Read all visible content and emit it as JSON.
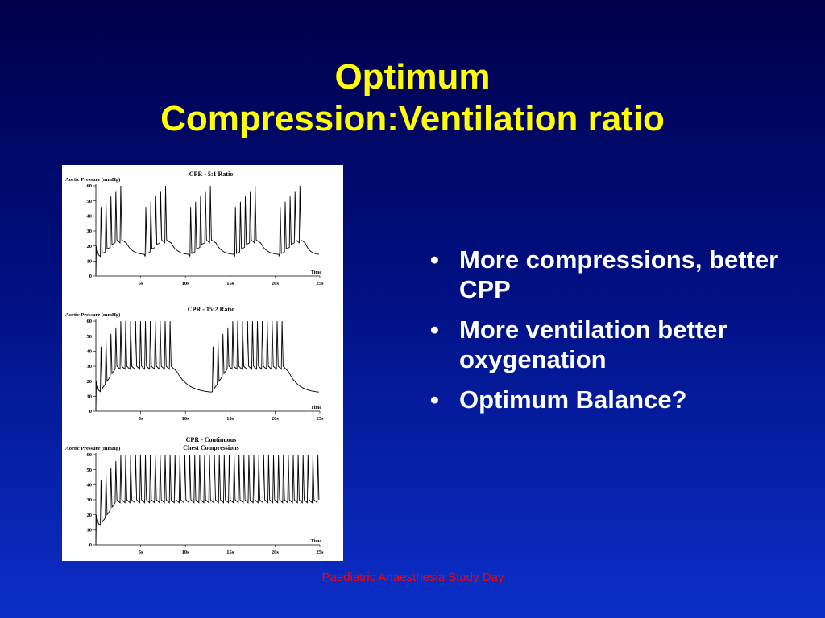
{
  "slide": {
    "title_lines": [
      "Optimum",
      "Compression:Ventilation ratio"
    ],
    "bullets": [
      "More compressions, better CPP",
      "More ventilation better oxygenation",
      "Optimum Balance?"
    ],
    "footer": "Paediatric Anaesthesia Study Day",
    "colors": {
      "title": "#ffff00",
      "bullet_text": "#ffffff",
      "footer": "#ff0000",
      "background": "#0010a0"
    }
  },
  "chart_data": [
    {
      "type": "line",
      "title": "CPR - 5:1 Ratio",
      "ylabel": "Aortic Pressure (mmHg)",
      "xlabel": "Time",
      "ylim": [
        0,
        60
      ],
      "yticks": [
        "0",
        "10",
        "20",
        "30",
        "40",
        "50",
        "60"
      ],
      "xlim": [
        0,
        25
      ],
      "xticks": [
        "5s",
        "10s",
        "15s",
        "20s",
        "25s"
      ],
      "grid": false,
      "pattern": {
        "compressions_per_cycle": 5,
        "cycles": 5,
        "first_cycle_start": 0.5,
        "cycle_period": 5,
        "compression_interval": 0.55,
        "peak_start": 46,
        "peak_end": 60,
        "trough_start": 13,
        "trough_end": 22,
        "pause_floor": 14
      }
    },
    {
      "type": "line",
      "title": "CPR - 15:2 Ratio",
      "ylabel": "Aortic Pressure (mmHg)",
      "xlabel": "Time",
      "ylim": [
        0,
        60
      ],
      "yticks": [
        "0",
        "10",
        "20",
        "30",
        "40",
        "50",
        "60"
      ],
      "xlim": [
        0,
        25
      ],
      "xticks": [
        "5s",
        "10s",
        "15s",
        "20s",
        "25s"
      ],
      "grid": false,
      "pattern": {
        "compressions_per_cycle": 15,
        "cycles": 2,
        "first_cycle_start": 0.5,
        "cycle_period": 12.5,
        "compression_interval": 0.55,
        "peak_start": 43,
        "peak_end": 60,
        "trough_start": 13,
        "trough_end": 28,
        "pause_floor": 12
      }
    },
    {
      "type": "line",
      "title": "CPR - Continuous\nChest Compressions",
      "ylabel": "Aortic Pressure (mmHg)",
      "xlabel": "Time",
      "ylim": [
        0,
        60
      ],
      "yticks": [
        "0",
        "10",
        "20",
        "30",
        "40",
        "50",
        "60"
      ],
      "xlim": [
        0,
        25
      ],
      "xticks": [
        "5s",
        "10s",
        "15s",
        "20s",
        "25s"
      ],
      "grid": false,
      "pattern": {
        "compressions_per_cycle": 48,
        "cycles": 1,
        "first_cycle_start": 0.5,
        "cycle_period": 25,
        "compression_interval": 0.55,
        "peak_start": 43,
        "peak_end": 60,
        "trough_start": 13,
        "trough_end": 28,
        "pause_floor": 28
      }
    }
  ]
}
